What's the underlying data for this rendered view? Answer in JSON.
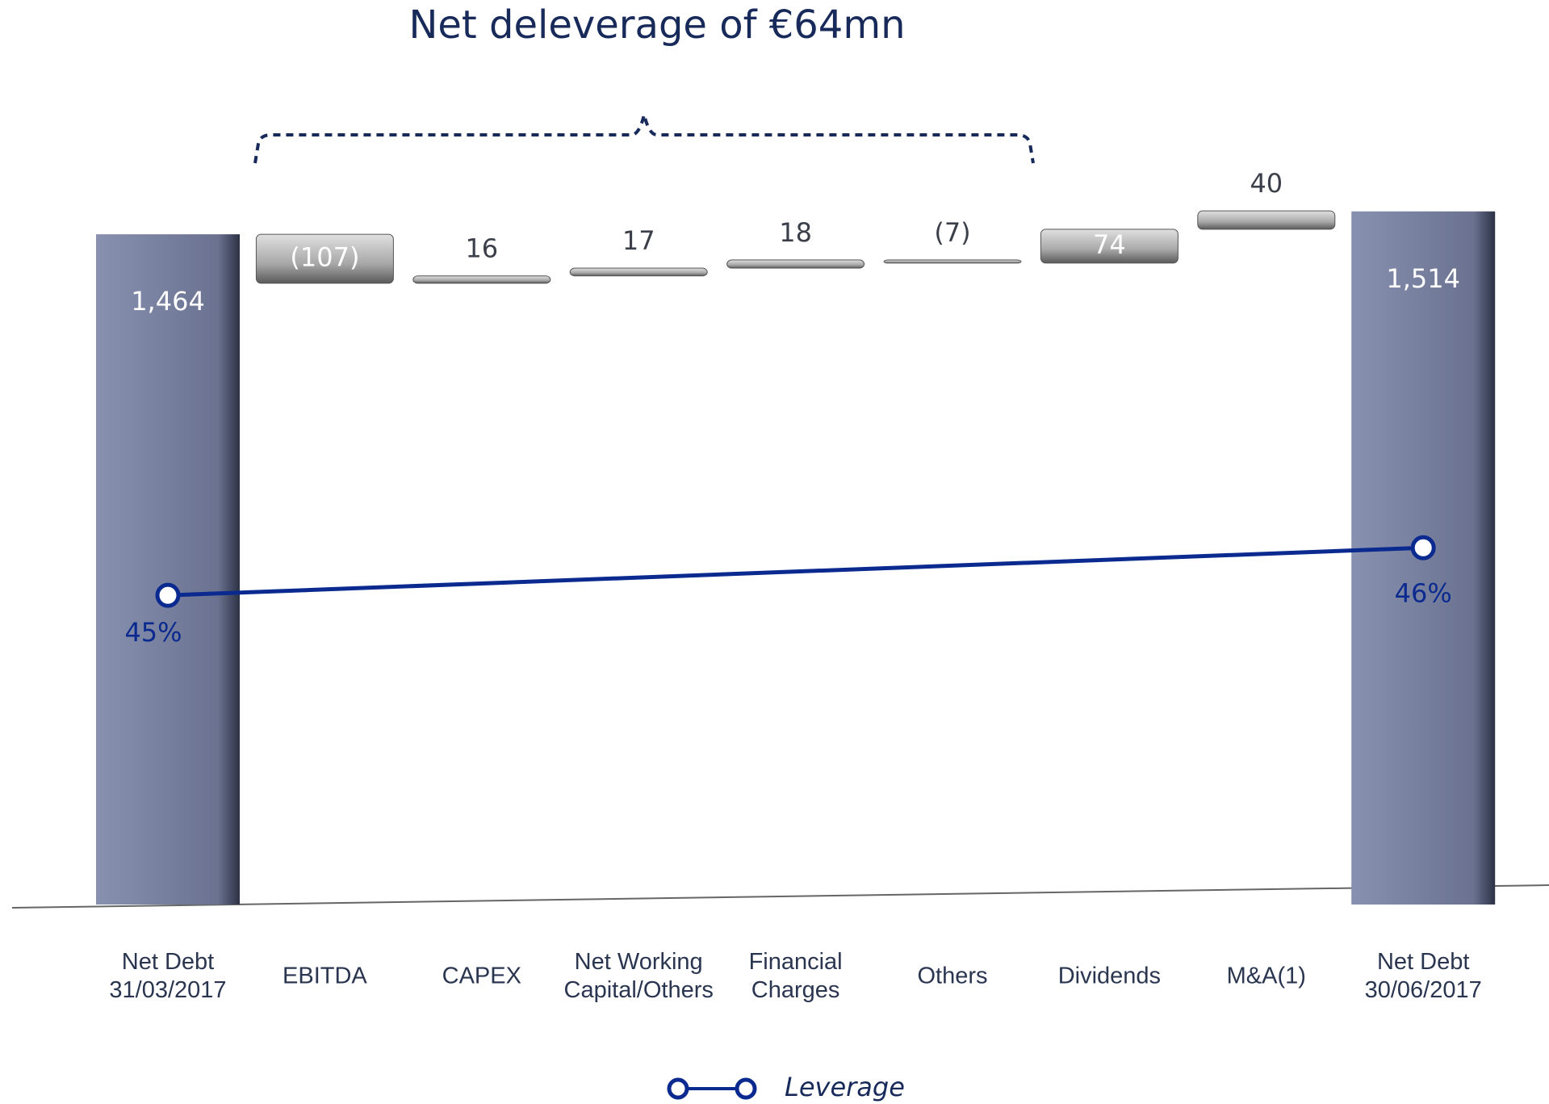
{
  "chart_data": {
    "type": "waterfall",
    "title": "Net deleverage of €64mn",
    "categories": [
      [
        "Net Debt",
        "31/03/2017"
      ],
      [
        "EBITDA"
      ],
      [
        "CAPEX"
      ],
      [
        "Net Working",
        "Capital/Others"
      ],
      [
        "Financial",
        "Charges"
      ],
      [
        "Others"
      ],
      [
        "Dividends"
      ],
      [
        "M&A(1)"
      ],
      [
        "Net Debt",
        "30/06/2017"
      ]
    ],
    "values": [
      1464,
      -107,
      16,
      17,
      18,
      -7,
      74,
      40,
      1514
    ],
    "value_labels": [
      "1,464",
      "(107)",
      "16",
      "17",
      "18",
      "(7)",
      "74",
      "40",
      "1,514"
    ],
    "totals": [
      true,
      false,
      false,
      false,
      false,
      false,
      false,
      false,
      true
    ],
    "total_color": "#727a97",
    "step_color": "#b4b4b4",
    "ylim": [
      0,
      1600
    ],
    "line": {
      "name": "Leverage",
      "color": "#0b2a8f",
      "axis": "y2",
      "values": [
        45,
        46
      ],
      "value_labels": [
        "45%",
        "46%"
      ]
    },
    "y2lim": [
      38.5,
      53.9
    ]
  }
}
